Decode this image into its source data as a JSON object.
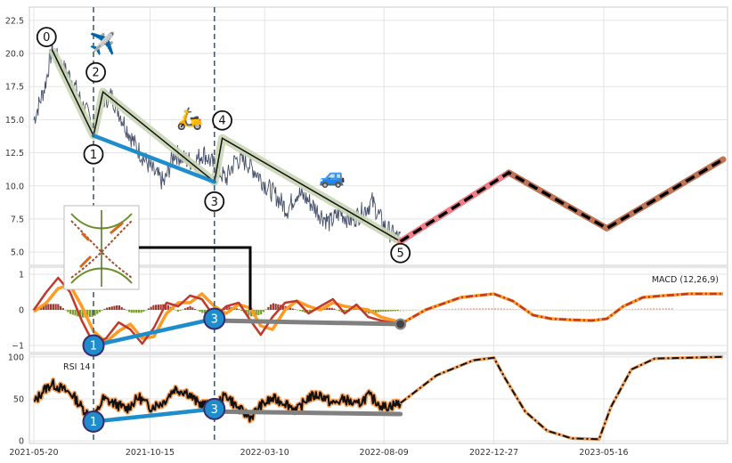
{
  "chart_data": {
    "type": "line",
    "x_ticks": [
      "2021-05-20",
      "2021-10-15",
      "2022-03-10",
      "2022-08-09",
      "2022-12-27",
      "2023-05-16"
    ],
    "grid": true,
    "colors": {
      "price": "#46506a",
      "wave_band": "#c9d6b4",
      "wave_line": "#111111",
      "projection_past": "#ef7f86",
      "projection_future_bg": "#c07455",
      "divergence": "#1f8dcc",
      "divergence_gray": "#808080",
      "macd_line": "#c0392b",
      "signal_line": "#ff9a22",
      "hist_pos": "#9b3a2e",
      "hist_neg": "#7a9a2e",
      "rsi_line": "#111111",
      "rsi_glow": "#f5a25d"
    },
    "icons": {
      "airplane": "✈️",
      "scooter": "🛵",
      "car": "🚙",
      "inset_thumbnail": "dna-helix-thumbnail"
    },
    "panels": [
      {
        "id": "price",
        "ylim": [
          4,
          23.5
        ],
        "y_ticks": [
          5.0,
          7.5,
          10.0,
          12.5,
          15.0,
          17.5,
          20.0,
          22.5
        ],
        "y_tick_labels": [
          "5.0",
          "7.5",
          "10.0",
          "12.5",
          "15.0",
          "17.5",
          "20.0",
          "22.5"
        ],
        "price_series": {
          "x": [
            "2021-05-20",
            "2021-06-03",
            "2021-06-12",
            "2021-06-25",
            "2021-07-08",
            "2021-07-20",
            "2021-08-04",
            "2021-08-16",
            "2021-08-27",
            "2021-09-10",
            "2021-09-25",
            "2021-10-08",
            "2021-10-20",
            "2021-11-02",
            "2021-11-15",
            "2021-11-28",
            "2021-12-10",
            "2021-12-22",
            "2022-01-05",
            "2022-01-20",
            "2022-02-01",
            "2022-02-15",
            "2022-02-28",
            "2022-03-12",
            "2022-03-25",
            "2022-04-08",
            "2022-04-20",
            "2022-05-03",
            "2022-05-18",
            "2022-06-01",
            "2022-06-14",
            "2022-06-28",
            "2022-07-12",
            "2022-07-25",
            "2022-08-09",
            "2022-08-20",
            "2022-08-30"
          ],
          "values": [
            15.0,
            17.5,
            20.3,
            19.0,
            18.0,
            16.2,
            14.6,
            16.5,
            16.8,
            15.0,
            13.2,
            12.0,
            11.0,
            10.2,
            12.5,
            12.0,
            11.8,
            12.5,
            11.5,
            10.5,
            12.0,
            11.8,
            11.0,
            10.0,
            9.2,
            8.2,
            9.5,
            9.0,
            8.0,
            7.2,
            8.0,
            7.4,
            8.0,
            8.8,
            7.0,
            6.3,
            6.0
          ]
        },
        "waves": {
          "labels": [
            "0",
            "1",
            "2",
            "3",
            "4",
            "5"
          ],
          "x": [
            "2021-06-12",
            "2021-08-04",
            "2021-08-16",
            "2022-01-05",
            "2022-01-15",
            "2022-08-30"
          ],
          "y": [
            20.3,
            13.8,
            17.1,
            10.3,
            13.6,
            5.8
          ]
        },
        "projection": {
          "x": [
            "2022-08-30",
            "2023-01-15",
            "2023-05-20",
            "2023-10-15"
          ],
          "y": [
            5.8,
            11.0,
            6.8,
            12.0
          ]
        },
        "divergence": {
          "x": [
            "2021-08-04",
            "2022-01-05"
          ],
          "y": [
            13.8,
            10.3
          ]
        },
        "vlines": [
          "2021-08-04",
          "2022-01-05"
        ]
      },
      {
        "id": "macd",
        "label": "MACD (12,26,9)",
        "ylim": [
          -1.2,
          1.2
        ],
        "y_ticks": [
          -1,
          0,
          1
        ],
        "y_tick_labels": [
          "−1",
          "0",
          "1"
        ],
        "macd": {
          "x": [
            "2021-05-20",
            "2021-06-05",
            "2021-06-20",
            "2021-07-05",
            "2021-07-20",
            "2021-08-04",
            "2021-08-20",
            "2021-09-05",
            "2021-09-20",
            "2021-10-05",
            "2021-10-20",
            "2021-11-05",
            "2021-11-20",
            "2021-12-05",
            "2021-12-20",
            "2022-01-05",
            "2022-01-20",
            "2022-02-05",
            "2022-02-20",
            "2022-03-05",
            "2022-03-20",
            "2022-04-05",
            "2022-04-20",
            "2022-05-05",
            "2022-05-20",
            "2022-06-05",
            "2022-06-20",
            "2022-07-05",
            "2022-07-20",
            "2022-08-05",
            "2022-08-30",
            "2022-10-01",
            "2022-11-15",
            "2022-12-27",
            "2023-01-20",
            "2023-02-15",
            "2023-03-10",
            "2023-04-05",
            "2023-05-01",
            "2023-05-20",
            "2023-06-10",
            "2023-07-05",
            "2023-08-01",
            "2023-09-01",
            "2023-10-15"
          ],
          "values": [
            0.0,
            0.5,
            0.9,
            0.5,
            -0.3,
            -0.95,
            -0.8,
            -0.35,
            -0.55,
            -0.95,
            -0.5,
            0.2,
            0.1,
            0.4,
            0.3,
            -0.2,
            0.1,
            0.2,
            -0.3,
            -0.7,
            -0.2,
            0.2,
            0.25,
            -0.1,
            0.1,
            0.3,
            -0.1,
            0.15,
            -0.2,
            -0.3,
            -0.4,
            0.0,
            0.35,
            0.45,
            0.25,
            -0.15,
            -0.25,
            -0.28,
            -0.3,
            -0.25,
            0.1,
            0.35,
            0.4,
            0.45,
            0.45
          ]
        },
        "signal": {
          "x": [
            "2021-05-20",
            "2021-06-05",
            "2021-06-20",
            "2021-07-05",
            "2021-07-20",
            "2021-08-04",
            "2021-08-20",
            "2021-09-05",
            "2021-09-20",
            "2021-10-05",
            "2021-10-20",
            "2021-11-05",
            "2021-11-20",
            "2021-12-05",
            "2021-12-20",
            "2022-01-05",
            "2022-01-20",
            "2022-02-05",
            "2022-02-20",
            "2022-03-05",
            "2022-03-20",
            "2022-04-05",
            "2022-04-20",
            "2022-05-05",
            "2022-05-20",
            "2022-06-05",
            "2022-06-20",
            "2022-07-05",
            "2022-07-20",
            "2022-08-05",
            "2022-08-30"
          ],
          "values": [
            -0.05,
            0.2,
            0.6,
            0.7,
            0.1,
            -0.6,
            -0.9,
            -0.6,
            -0.4,
            -0.8,
            -0.75,
            -0.1,
            0.2,
            0.2,
            0.45,
            0.1,
            -0.1,
            0.15,
            0.05,
            -0.45,
            -0.55,
            0.0,
            0.25,
            0.1,
            0.0,
            0.2,
            0.1,
            0.05,
            0.0,
            -0.2,
            -0.35
          ]
        },
        "divergence": {
          "labels": [
            "1",
            "3"
          ],
          "x": [
            "2021-08-04",
            "2022-01-05"
          ],
          "y": [
            -1.0,
            -0.25
          ]
        },
        "divergence_gray": {
          "x": [
            "2022-01-05",
            "2022-08-30"
          ],
          "y": [
            -0.3,
            -0.4
          ]
        }
      },
      {
        "id": "rsi",
        "label": "RSI 14",
        "ylim": [
          -3,
          103
        ],
        "y_ticks": [
          0,
          50,
          100
        ],
        "y_tick_labels": [
          "0",
          "50",
          "100"
        ],
        "rsi": {
          "x": [
            "2021-05-20",
            "2021-06-01",
            "2021-06-12",
            "2021-06-25",
            "2021-07-08",
            "2021-07-20",
            "2021-08-04",
            "2021-08-16",
            "2021-09-01",
            "2021-09-15",
            "2021-10-01",
            "2021-10-15",
            "2021-11-01",
            "2021-11-15",
            "2021-12-01",
            "2021-12-15",
            "2022-01-05",
            "2022-01-20",
            "2022-02-05",
            "2022-02-20",
            "2022-03-05",
            "2022-03-20",
            "2022-04-05",
            "2022-04-20",
            "2022-05-05",
            "2022-05-20",
            "2022-06-05",
            "2022-06-20",
            "2022-07-05",
            "2022-07-20",
            "2022-08-09",
            "2022-08-30",
            "2022-10-15",
            "2022-12-01",
            "2022-12-27",
            "2023-01-10",
            "2023-02-05",
            "2023-03-05",
            "2023-04-05",
            "2023-05-10",
            "2023-05-25",
            "2023-06-20",
            "2023-07-20",
            "2023-10-15"
          ],
          "values": [
            45,
            60,
            68,
            62,
            55,
            40,
            25,
            50,
            44,
            38,
            52,
            40,
            46,
            62,
            58,
            45,
            40,
            55,
            38,
            28,
            42,
            50,
            46,
            36,
            52,
            55,
            44,
            50,
            42,
            54,
            40,
            45,
            78,
            96,
            99,
            75,
            35,
            12,
            3,
            2,
            40,
            85,
            98,
            100
          ]
        },
        "divergence": {
          "labels": [
            "1",
            "3"
          ],
          "x": [
            "2021-08-04",
            "2022-01-05"
          ],
          "y": [
            23,
            38
          ]
        },
        "divergence_gray": {
          "x": [
            "2022-01-05",
            "2022-08-30"
          ],
          "y": [
            35,
            32
          ]
        }
      }
    ]
  }
}
